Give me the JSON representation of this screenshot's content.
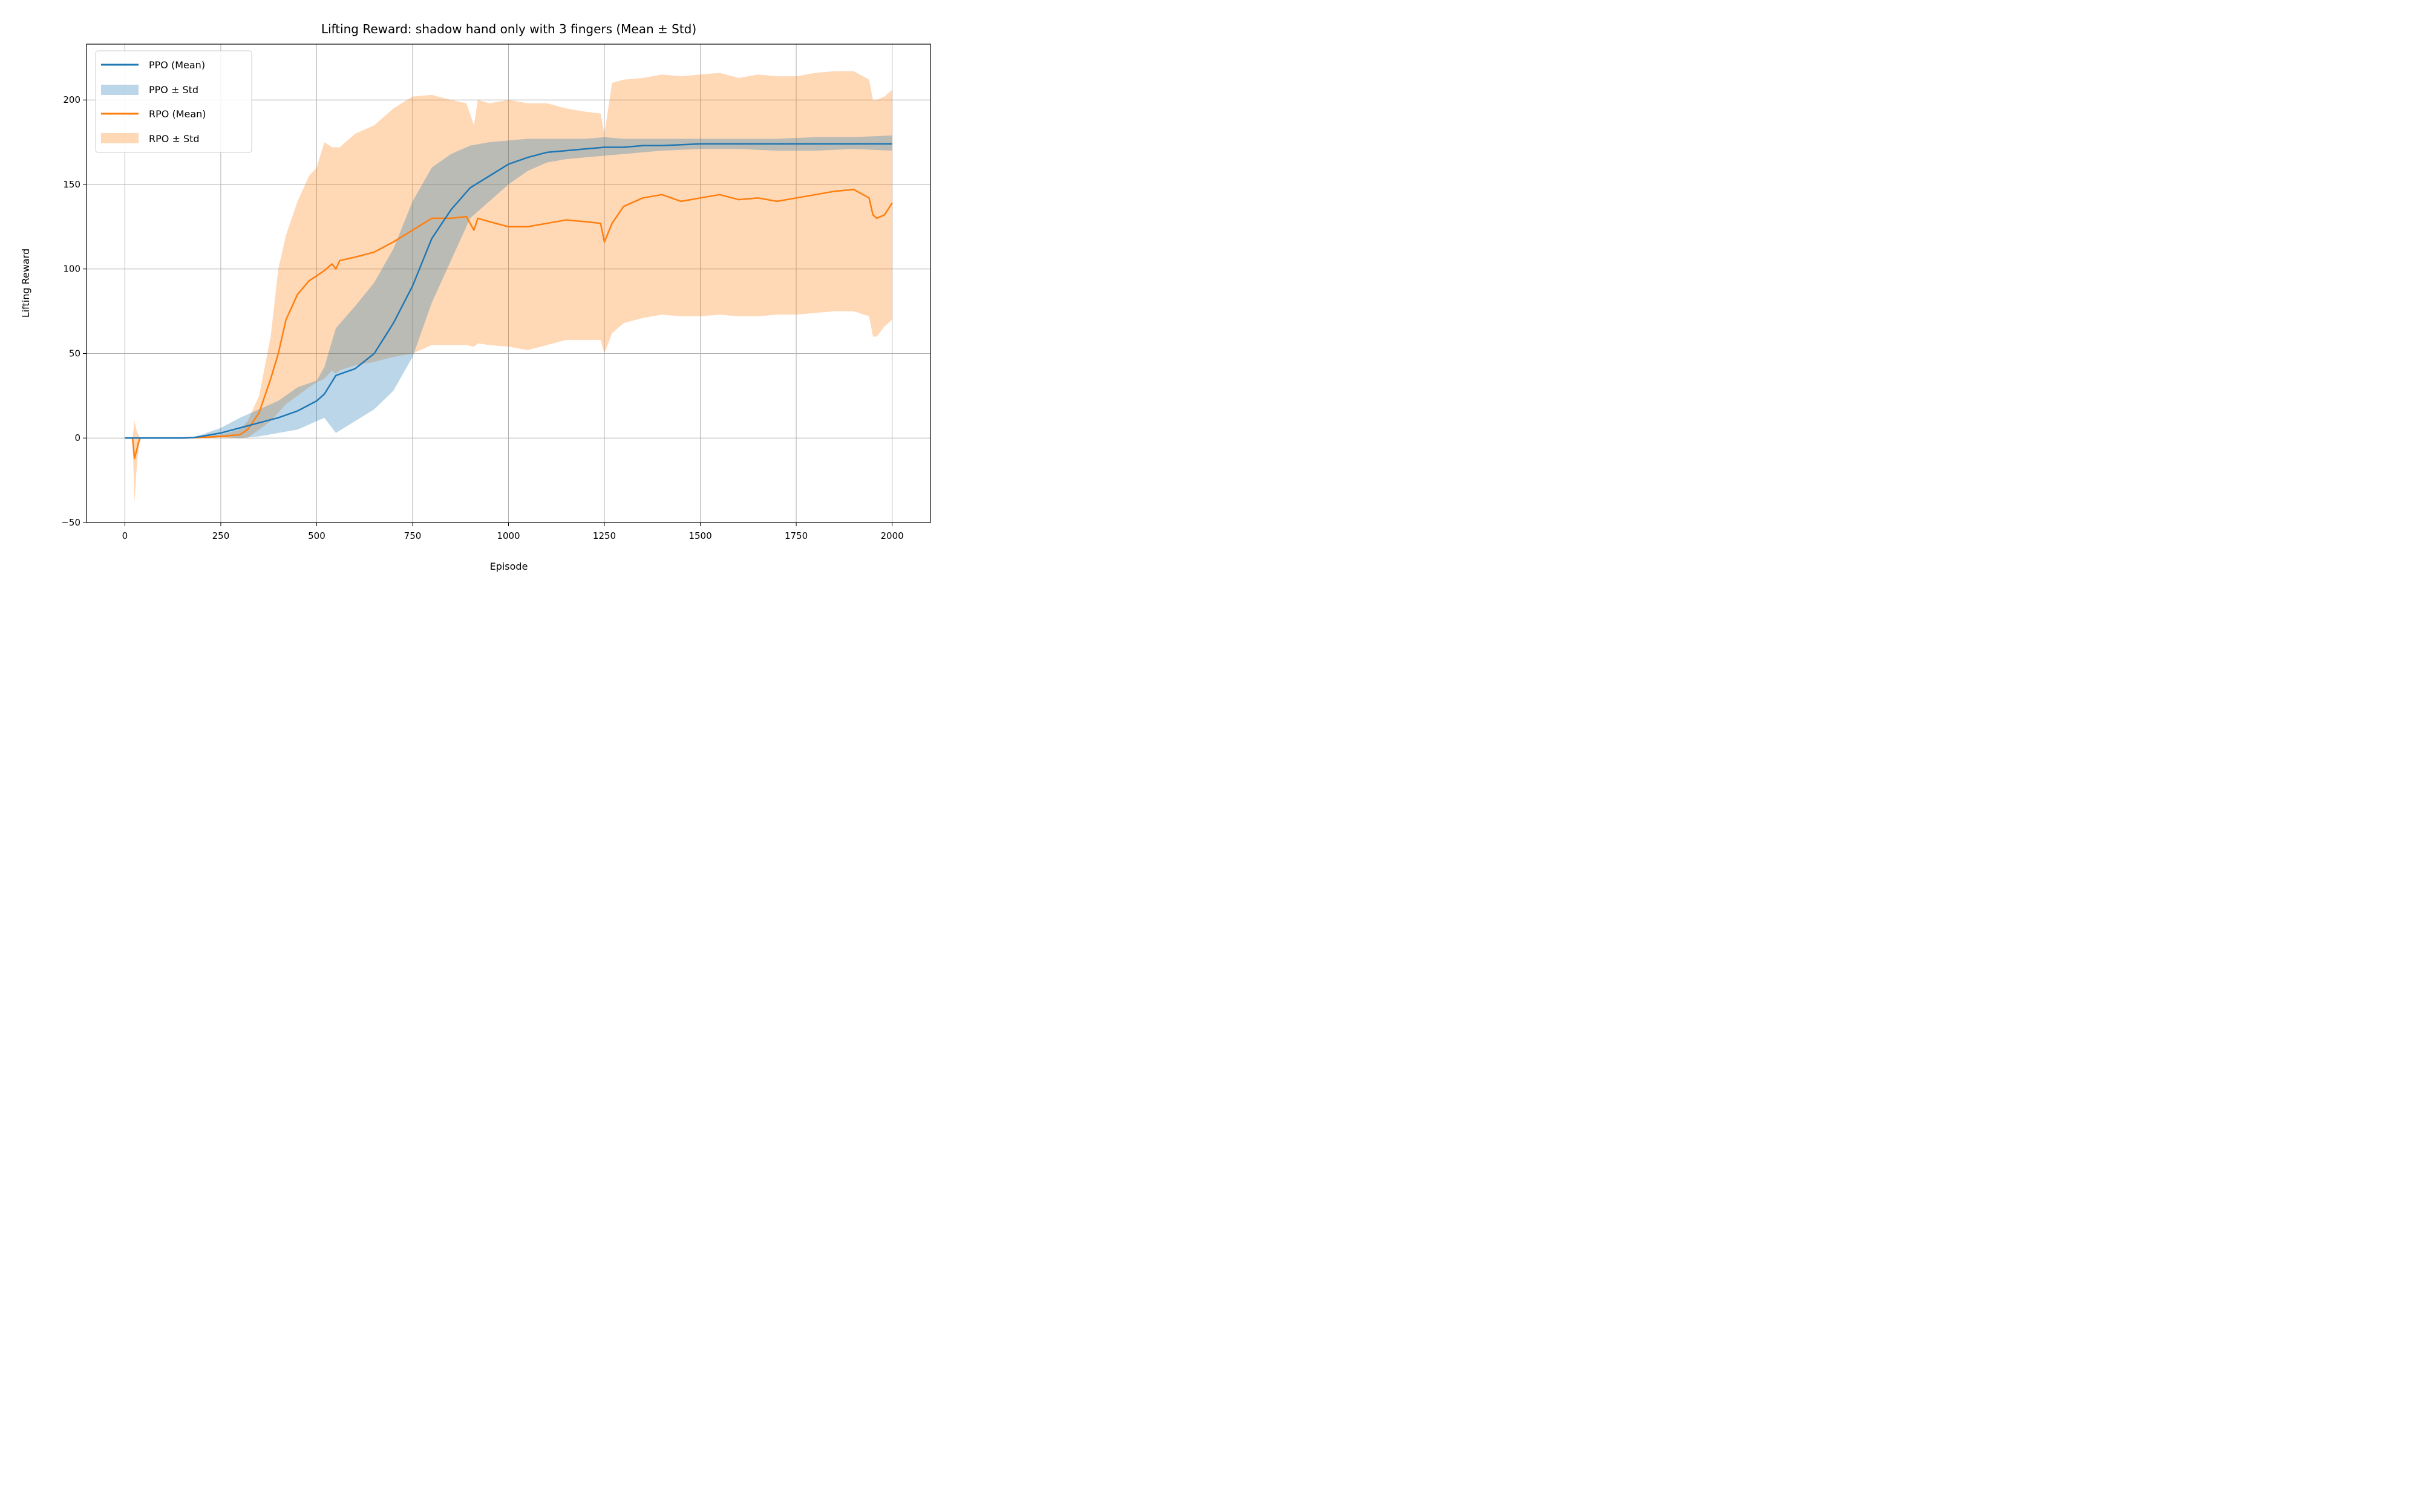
{
  "chart_data": {
    "type": "line",
    "title": "Lifting Reward: shadow hand only with 3 fingers (Mean ± Std)",
    "xlabel": "Episode",
    "ylabel": "Lifting Reward",
    "xlim": [
      -100,
      2100
    ],
    "ylim": [
      -50,
      233
    ],
    "xticks": [
      0,
      250,
      500,
      750,
      1000,
      1250,
      1500,
      1750,
      2000
    ],
    "xtick_labels": [
      "0",
      "250",
      "500",
      "750",
      "1000",
      "1250",
      "1500",
      "1750",
      "2000"
    ],
    "yticks": [
      -50,
      0,
      50,
      100,
      150,
      200
    ],
    "ytick_labels": [
      "−50",
      "0",
      "50",
      "100",
      "150",
      "200"
    ],
    "grid": true,
    "legend_position": "top-left",
    "legend": [
      "PPO (Mean)",
      "PPO ± Std",
      "RPO (Mean)",
      "RPO ± Std"
    ],
    "colors": {
      "ppo": "#1f77b4",
      "rpo": "#ff7f0e"
    },
    "series": [
      {
        "name": "PPO (Mean)",
        "band_name": "PPO ± Std",
        "x": [
          0,
          50,
          100,
          150,
          180,
          200,
          250,
          300,
          350,
          400,
          450,
          500,
          520,
          550,
          600,
          650,
          700,
          750,
          800,
          850,
          900,
          950,
          1000,
          1050,
          1100,
          1150,
          1200,
          1250,
          1300,
          1350,
          1400,
          1500,
          1600,
          1700,
          1800,
          1900,
          2000
        ],
        "mean": [
          0,
          0,
          0,
          0,
          0.3,
          1,
          3,
          6,
          9,
          12,
          16,
          22,
          26,
          37,
          41,
          50,
          68,
          90,
          118,
          135,
          148,
          155,
          162,
          166,
          169,
          170,
          171,
          172,
          172,
          173,
          173,
          174,
          174,
          174,
          174,
          174,
          174
        ],
        "upper": [
          0,
          0,
          0,
          0,
          0.6,
          2,
          6,
          12,
          17,
          22,
          30,
          34,
          42,
          65,
          78,
          92,
          112,
          140,
          160,
          168,
          173,
          175,
          176,
          177,
          177,
          177,
          177,
          178,
          177,
          177,
          177,
          177,
          177,
          177,
          178,
          178,
          179
        ],
        "lower": [
          0,
          0,
          0,
          0,
          0.1,
          0.3,
          0.5,
          0,
          1,
          3,
          5,
          10,
          12,
          3,
          10,
          17,
          28,
          48,
          80,
          105,
          130,
          140,
          150,
          158,
          163,
          165,
          166,
          167,
          168,
          169,
          170,
          171,
          171,
          170,
          170,
          171,
          170
        ]
      },
      {
        "name": "RPO (Mean)",
        "band_name": "RPO ± Std",
        "x": [
          0,
          20,
          25,
          30,
          35,
          40,
          50,
          100,
          150,
          200,
          250,
          300,
          320,
          350,
          380,
          400,
          420,
          450,
          480,
          500,
          520,
          540,
          550,
          560,
          600,
          650,
          700,
          750,
          800,
          850,
          890,
          910,
          920,
          950,
          1000,
          1050,
          1100,
          1150,
          1200,
          1240,
          1250,
          1270,
          1300,
          1350,
          1400,
          1450,
          1500,
          1550,
          1600,
          1650,
          1700,
          1750,
          1800,
          1850,
          1900,
          1940,
          1950,
          1960,
          1980,
          2000
        ],
        "mean": [
          0,
          0,
          -12,
          -8,
          -3,
          0,
          0,
          0,
          0,
          0.3,
          1,
          2,
          5,
          15,
          35,
          50,
          70,
          85,
          93,
          96,
          99,
          103,
          100,
          105,
          107,
          110,
          116,
          123,
          130,
          130,
          131,
          123,
          130,
          128,
          125,
          125,
          127,
          129,
          128,
          127,
          116,
          127,
          137,
          142,
          144,
          140,
          142,
          144,
          141,
          142,
          140,
          142,
          144,
          146,
          147,
          142,
          132,
          130,
          132,
          139
        ],
        "upper": [
          0,
          0,
          10,
          5,
          2,
          0,
          0,
          0,
          0,
          1,
          2,
          5,
          10,
          25,
          60,
          100,
          120,
          140,
          155,
          160,
          175,
          172,
          172,
          172,
          180,
          185,
          195,
          202,
          203,
          200,
          198,
          185,
          200,
          198,
          200,
          198,
          198,
          195,
          193,
          192,
          180,
          210,
          212,
          213,
          215,
          214,
          215,
          216,
          213,
          215,
          214,
          214,
          216,
          217,
          217,
          212,
          200,
          200,
          202,
          206
        ],
        "lower": [
          0,
          0,
          -38,
          -20,
          -8,
          0,
          0,
          0,
          0,
          0,
          0,
          0,
          0,
          5,
          10,
          15,
          20,
          25,
          30,
          33,
          35,
          40,
          38,
          40,
          43,
          45,
          48,
          50,
          55,
          55,
          55,
          54,
          56,
          55,
          54,
          52,
          55,
          58,
          58,
          58,
          50,
          62,
          68,
          71,
          73,
          72,
          72,
          73,
          72,
          72,
          73,
          73,
          74,
          75,
          75,
          72,
          60,
          60,
          66,
          70
        ]
      }
    ]
  }
}
